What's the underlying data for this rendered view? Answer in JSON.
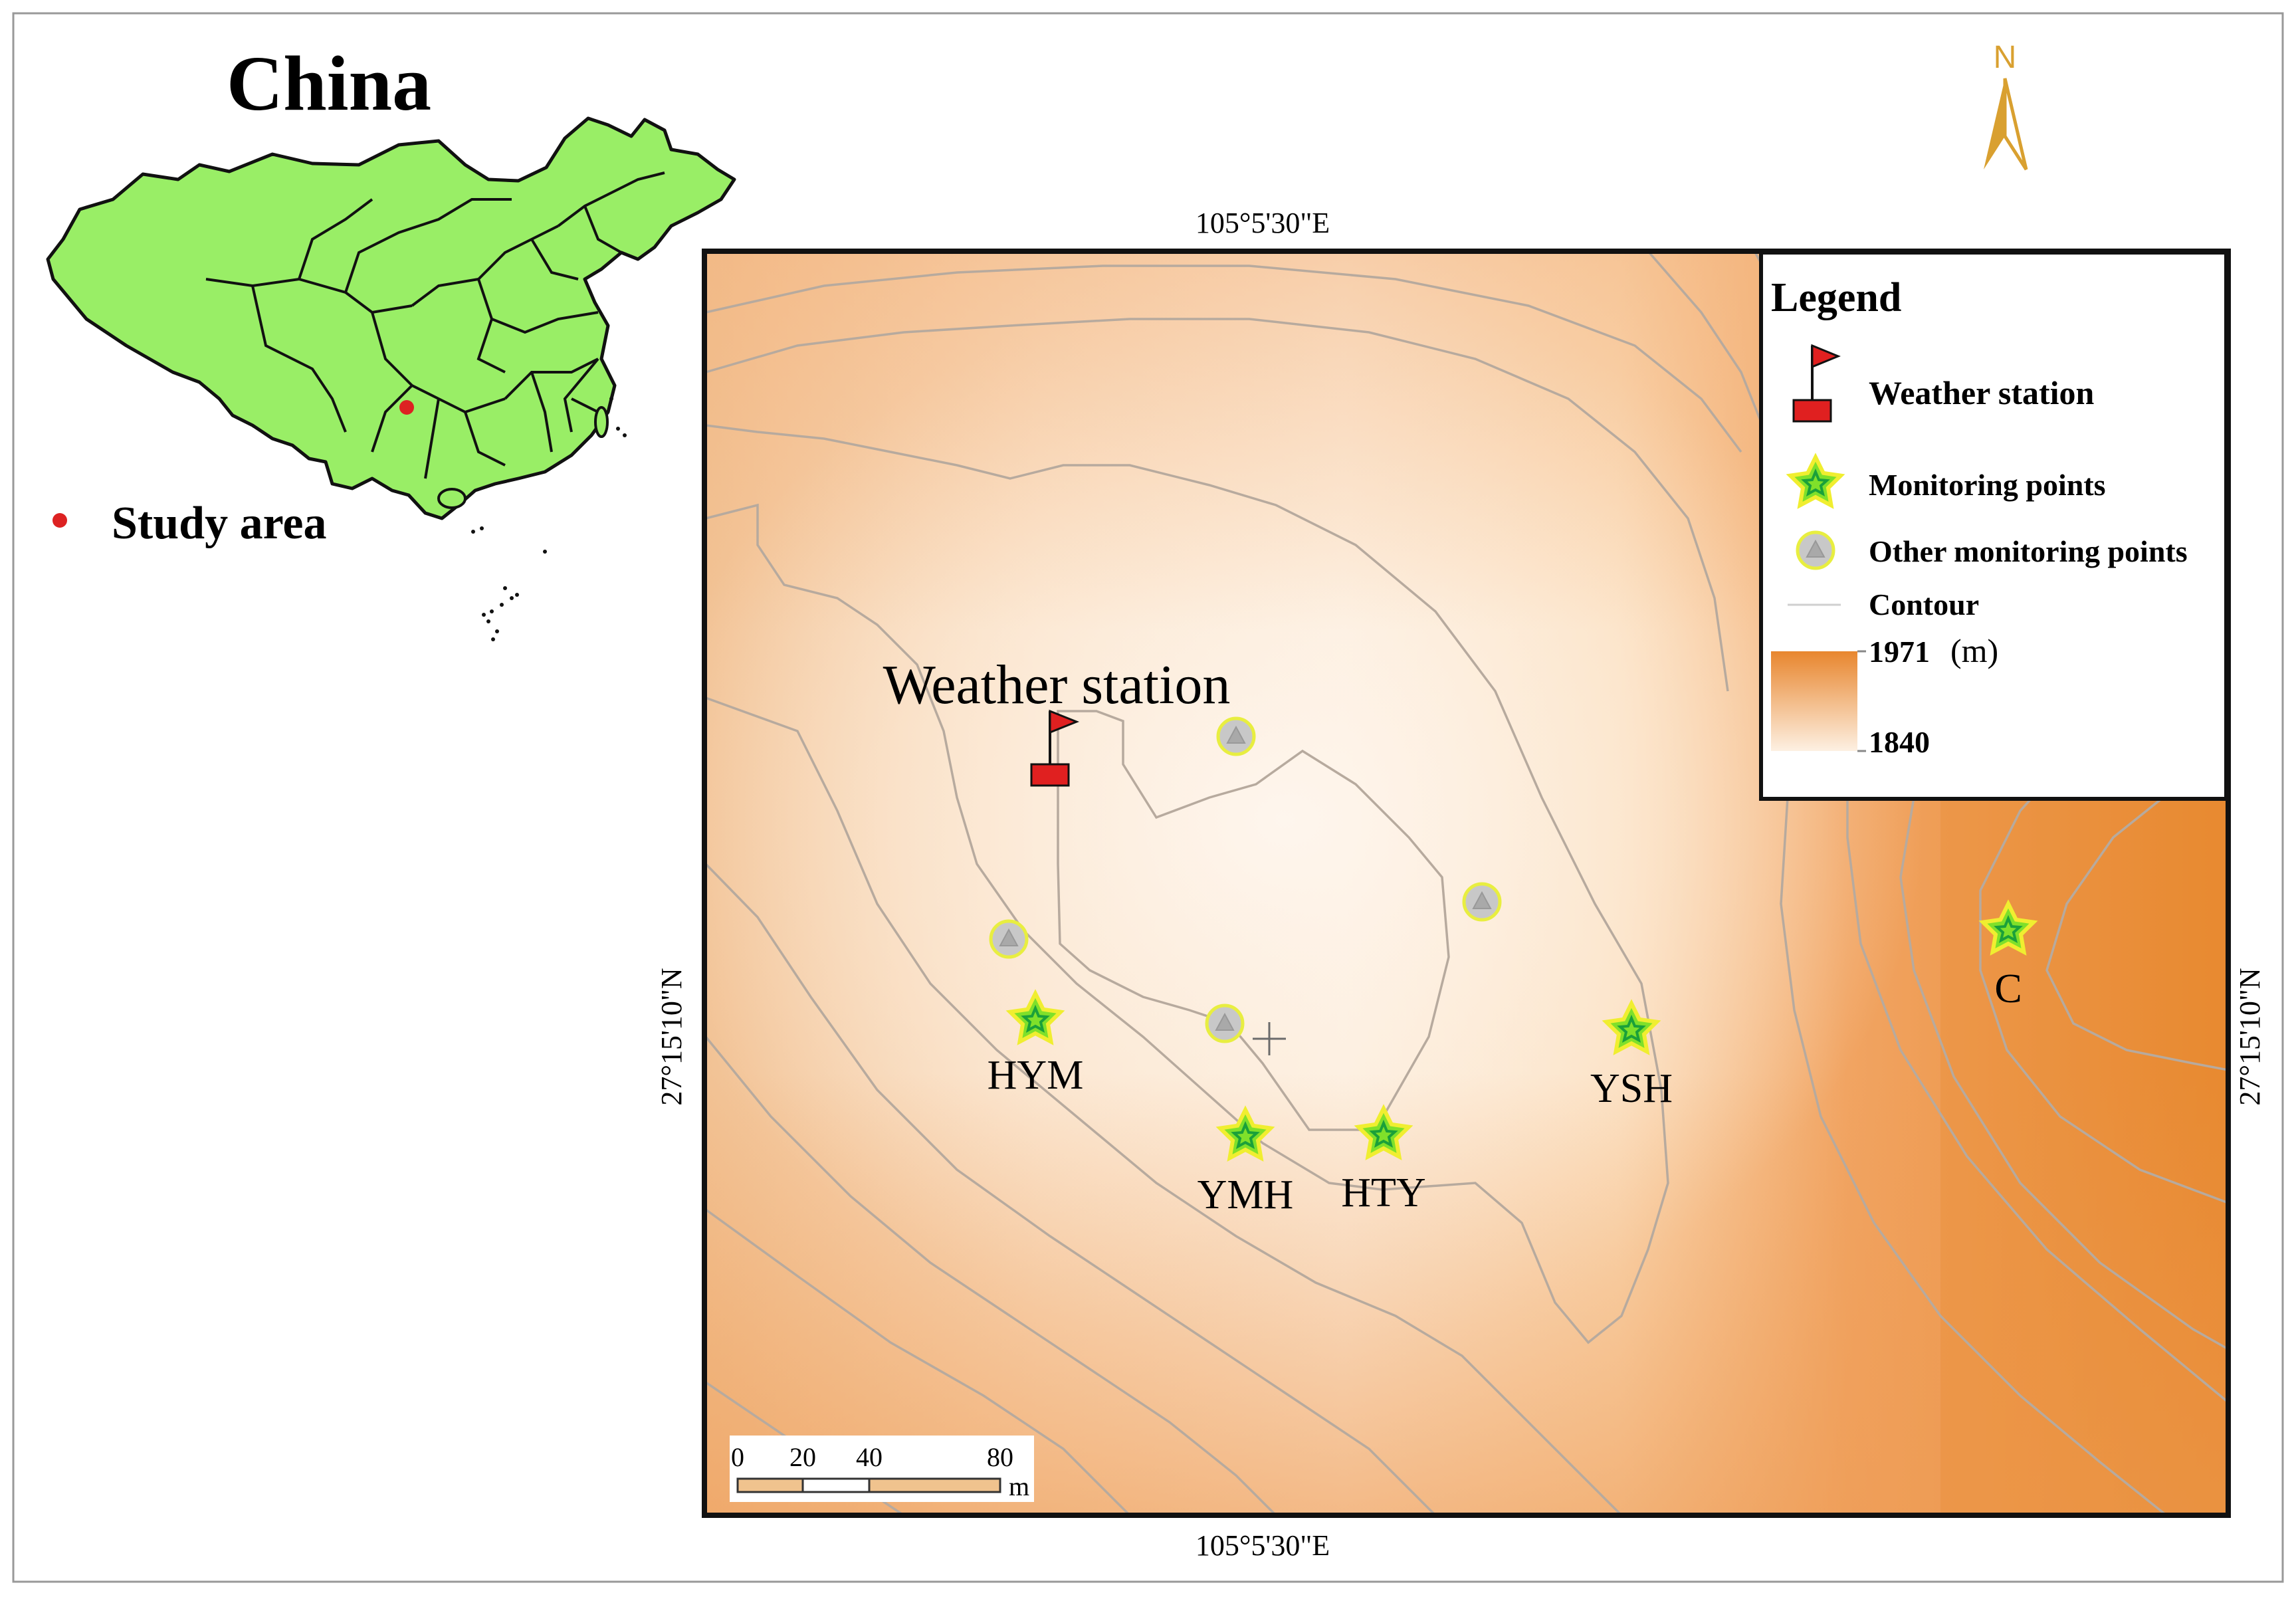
{
  "inset": {
    "title": "China",
    "legend_label": "Study area",
    "land_color": "#99ee66",
    "marker_color": "#dd2222"
  },
  "north_arrow": {
    "label": "N",
    "color": "#d9a030"
  },
  "coordinates": {
    "top_lon": "105°5'30\"E",
    "bottom_lon": "105°5'30\"E",
    "left_lat": "27°15'10\"N",
    "right_lat": "27°15'10\"N"
  },
  "map": {
    "callout": "Weather station",
    "elevation_low_color": "#fdf0e2",
    "elevation_high_color": "#e8862e",
    "contour_color": "#b4a89c",
    "sites": [
      {
        "label": "HYM",
        "type": "monitoring"
      },
      {
        "label": "YMH",
        "type": "monitoring"
      },
      {
        "label": "HTY",
        "type": "monitoring"
      },
      {
        "label": "YSH",
        "type": "monitoring"
      },
      {
        "label": "C",
        "type": "monitoring"
      },
      {
        "label": "",
        "type": "other"
      },
      {
        "label": "",
        "type": "other"
      },
      {
        "label": "",
        "type": "other"
      },
      {
        "label": "",
        "type": "other"
      }
    ]
  },
  "legend": {
    "title": "Legend",
    "weather_station": "Weather station",
    "monitoring_points": "Monitoring points",
    "other_monitoring_points": "Other monitoring points",
    "contour": "Contour",
    "max_value": "1971",
    "unit": "(m)",
    "min_value": "1840"
  },
  "scale_bar": {
    "ticks": [
      "0",
      "20",
      "40",
      "80"
    ],
    "unit": "m"
  }
}
